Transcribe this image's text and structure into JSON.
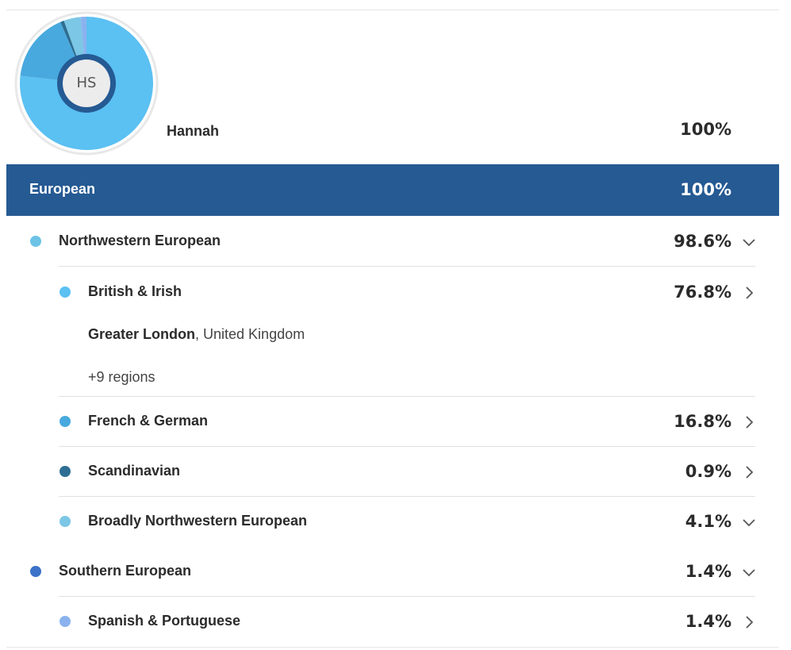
{
  "person": {
    "initials": "HS",
    "name": "Hannah",
    "percent": "100%"
  },
  "region_group": {
    "label": "European",
    "percent": "100%"
  },
  "rows": [
    {
      "label": "Northwestern European",
      "percent": "98.6%",
      "dot_color": "#6cc3e6",
      "chevron": "chevron-down-icon"
    },
    {
      "label": "British & Irish",
      "percent": "76.8%",
      "dot_color": "#5bc0f2",
      "chevron": "chevron-right-icon"
    },
    {
      "label": "French & German",
      "percent": "16.8%",
      "dot_color": "#48a9df",
      "chevron": "chevron-right-icon"
    },
    {
      "label": "Scandinavian",
      "percent": "0.9%",
      "dot_color": "#2e6e92",
      "chevron": "chevron-right-icon"
    },
    {
      "label": "Broadly Northwestern European",
      "percent": "4.1%",
      "dot_color": "#7cc7e5",
      "chevron": "chevron-down-icon"
    },
    {
      "label": "Southern European",
      "percent": "1.4%",
      "dot_color": "#3c72c8",
      "chevron": "chevron-down-icon"
    },
    {
      "label": "Spanish & Portuguese",
      "percent": "1.4%",
      "dot_color": "#8ab2ee",
      "chevron": "chevron-right-icon"
    }
  ],
  "british_irish_detail": {
    "top_region": "Greater London",
    "country": ", United Kingdom",
    "more_regions": "+9 regions"
  },
  "donut": {
    "ring_color": "#255a93",
    "border_color": "#e8e8e8",
    "slices": [
      {
        "value": 76.8,
        "color": "#5bc0f2"
      },
      {
        "value": 16.8,
        "color": "#48a9df"
      },
      {
        "value": 0.9,
        "color": "#2e6e92"
      },
      {
        "value": 4.1,
        "color": "#7cc7e5"
      },
      {
        "value": 1.4,
        "color": "#8ab2ee"
      }
    ]
  }
}
